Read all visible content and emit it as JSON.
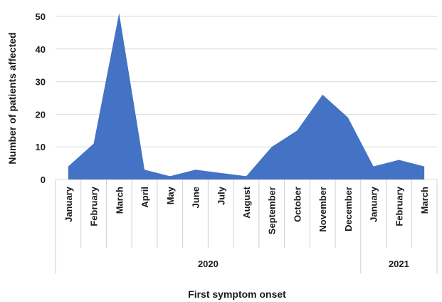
{
  "chart_data": {
    "type": "area",
    "categories": [
      "January",
      "February",
      "March",
      "April",
      "May",
      "June",
      "July",
      "August",
      "September",
      "October",
      "November",
      "December",
      "January",
      "February",
      "March"
    ],
    "groups": [
      {
        "label": "2020",
        "count": 12
      },
      {
        "label": "2021",
        "count": 3
      }
    ],
    "series": [
      {
        "values": [
          4,
          11,
          51,
          3,
          1,
          3,
          2,
          1,
          10,
          15,
          26,
          19,
          4,
          6,
          4
        ],
        "color": "#4472C4"
      }
    ],
    "ylim": [
      0,
      50
    ],
    "yticks": [
      0,
      10,
      20,
      30,
      40,
      50
    ],
    "ylabel": "Number of patients affected",
    "xlabel": "First symptom onset",
    "grid": true,
    "legend": "none"
  }
}
